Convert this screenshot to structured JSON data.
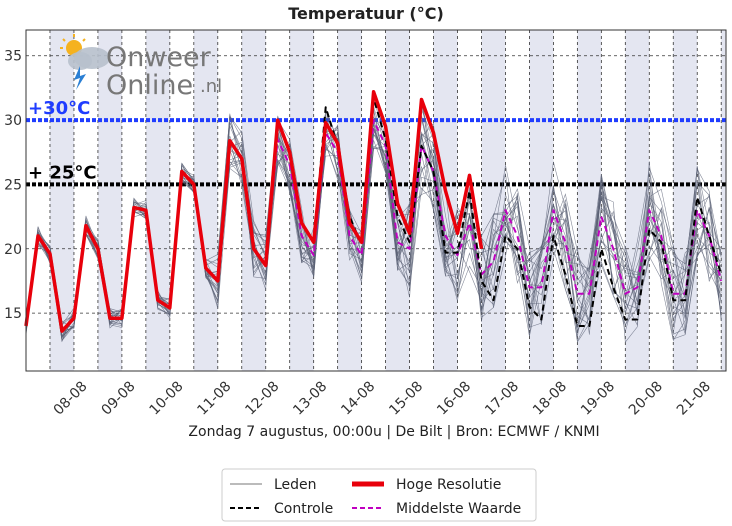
{
  "chart_data": {
    "type": "line",
    "title": "Temperatuur (°C)",
    "xlabel": "Zondag 7 augustus, 00:00u  | De Bilt | Bron: ECMWF / KNMI",
    "ylabel": "",
    "ylim": [
      10.5,
      37
    ],
    "yticks": [
      15,
      20,
      25,
      30,
      35
    ],
    "x_tick_labels": [
      "08-08",
      "09-08",
      "10-08",
      "11-08",
      "12-08",
      "13-08",
      "14-08",
      "15-08",
      "16-08",
      "17-08",
      "18-08",
      "19-08",
      "20-08",
      "21-08"
    ],
    "x_tick_positions": [
      1,
      2,
      3,
      4,
      5,
      6,
      7,
      8,
      9,
      10,
      11,
      12,
      13,
      14
    ],
    "xlim": [
      0,
      14.6
    ],
    "thresholds": [
      {
        "value": 30,
        "label": "+30°C",
        "color": "#1f3cff"
      },
      {
        "value": 25,
        "label": "+ 25°C",
        "color": "#000000"
      }
    ],
    "legend": {
      "position": "bottom",
      "items": [
        {
          "label": "Leden",
          "style": "thin-gray"
        },
        {
          "label": "Hoge Resolutie",
          "style": "thick-red"
        },
        {
          "label": "Controle",
          "style": "dashed-black"
        },
        {
          "label": "Middelste Waarde",
          "style": "dashed-magenta"
        }
      ]
    },
    "series": [
      {
        "name": "Hoge Resolutie",
        "color": "#e8000b",
        "x": [
          0,
          0.25,
          0.5,
          0.75,
          1,
          1.25,
          1.5,
          1.75,
          2,
          2.25,
          2.5,
          2.75,
          3,
          3.25,
          3.5,
          3.75,
          4,
          4.25,
          4.5,
          4.75,
          5,
          5.25,
          5.5,
          5.75,
          6,
          6.25,
          6.5,
          6.75,
          7,
          7.25,
          7.5,
          7.75,
          8,
          8.25,
          8.5,
          8.75,
          9,
          9.25,
          9.5
        ],
        "values": [
          14,
          21,
          19.6,
          13.6,
          14.6,
          21.8,
          20,
          14.6,
          14.6,
          23.2,
          23,
          16,
          15.4,
          26,
          25,
          18.5,
          17.5,
          28.4,
          27,
          20,
          18.7,
          30,
          27.5,
          22,
          20.5,
          29.8,
          28.2,
          22,
          20.5,
          32.2,
          29.5,
          23.5,
          21.2,
          31.6,
          29,
          24.5,
          21.2,
          25.7,
          20
        ]
      },
      {
        "name": "Controle",
        "color": "#000000",
        "x": [
          6,
          6.25,
          6.5,
          6.75,
          7,
          7.25,
          7.5,
          7.75,
          8,
          8.25,
          8.5,
          8.75,
          9,
          9.25,
          9.5,
          9.75,
          10,
          10.25,
          10.5,
          10.75,
          11,
          11.25,
          11.5,
          11.75,
          12,
          12.25,
          12.5,
          12.75,
          13,
          13.25,
          13.5,
          13.75,
          14,
          14.25,
          14.5
        ],
        "values": [
          20.5,
          31,
          28,
          22.5,
          20.3,
          31.7,
          28.5,
          22.5,
          20.5,
          28,
          26,
          19.7,
          19.7,
          24.5,
          17.5,
          16,
          21,
          20,
          15.5,
          14.5,
          21,
          18,
          14,
          14,
          20,
          17,
          14.5,
          14.5,
          21.5,
          20.5,
          16,
          16,
          24,
          21,
          18
        ]
      },
      {
        "name": "Middelste Waarde",
        "color": "#c000c0",
        "x": [
          5,
          5.25,
          5.5,
          5.75,
          6,
          6.25,
          6.5,
          6.75,
          7,
          7.25,
          7.5,
          7.75,
          8,
          8.25,
          8.5,
          8.75,
          9,
          9.25,
          9.5,
          9.75,
          10,
          10.25,
          10.5,
          10.75,
          11,
          11.25,
          11.5,
          11.75,
          12,
          12.25,
          12.5,
          12.75,
          13,
          13.25,
          13.5,
          13.75,
          14,
          14.25,
          14.5
        ],
        "values": [
          19,
          28.5,
          26.5,
          21,
          19.5,
          29,
          27.5,
          21,
          19.5,
          30,
          28,
          20.5,
          20,
          28,
          26,
          21,
          19.5,
          22,
          18,
          19,
          23,
          21,
          17,
          17,
          23,
          20.5,
          16.5,
          16.5,
          22.5,
          20,
          16.5,
          17,
          23,
          21,
          16.5,
          16.5,
          23,
          21,
          17.5
        ]
      }
    ],
    "ensemble": {
      "name": "Leden",
      "color": "#5b6275",
      "count": 22
    }
  }
}
